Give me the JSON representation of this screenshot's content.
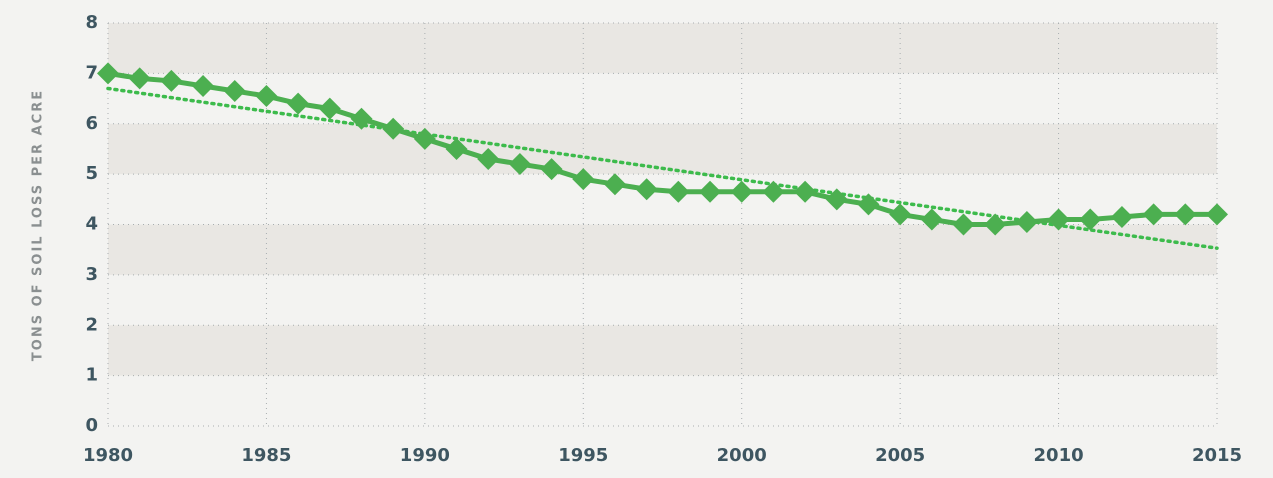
{
  "chart_data": {
    "type": "line",
    "y_label": "TONS OF SOIL LOSS PER ACRE",
    "x": [
      1980,
      1981,
      1982,
      1983,
      1984,
      1985,
      1986,
      1987,
      1988,
      1989,
      1990,
      1991,
      1992,
      1993,
      1994,
      1995,
      1996,
      1997,
      1998,
      1999,
      2000,
      2001,
      2002,
      2003,
      2004,
      2005,
      2006,
      2007,
      2008,
      2009,
      2010,
      2011,
      2012,
      2013,
      2014,
      2015
    ],
    "series": [
      {
        "color": "#4caf50",
        "values": [
          7.0,
          6.9,
          6.85,
          6.75,
          6.65,
          6.55,
          6.4,
          6.3,
          6.1,
          5.9,
          5.7,
          5.5,
          5.3,
          5.2,
          5.1,
          4.9,
          4.8,
          4.7,
          4.65,
          4.65,
          4.65,
          4.65,
          4.65,
          4.5,
          4.4,
          4.2,
          4.1,
          4.0,
          4.0,
          4.05,
          4.1,
          4.1,
          4.15,
          4.2,
          4.2,
          4.2
        ]
      }
    ],
    "trendline": {
      "color": "#3dbb4c",
      "x": [
        1980,
        2015
      ],
      "values": [
        6.7,
        3.53
      ]
    },
    "xlim": [
      1980,
      2015
    ],
    "xticks": [
      1980,
      1985,
      1990,
      1995,
      2000,
      2005,
      2010,
      2015
    ],
    "ylim": [
      0,
      8
    ],
    "yticks": [
      0,
      1,
      2,
      3,
      4,
      5,
      6,
      7,
      8
    ],
    "grid": true
  }
}
